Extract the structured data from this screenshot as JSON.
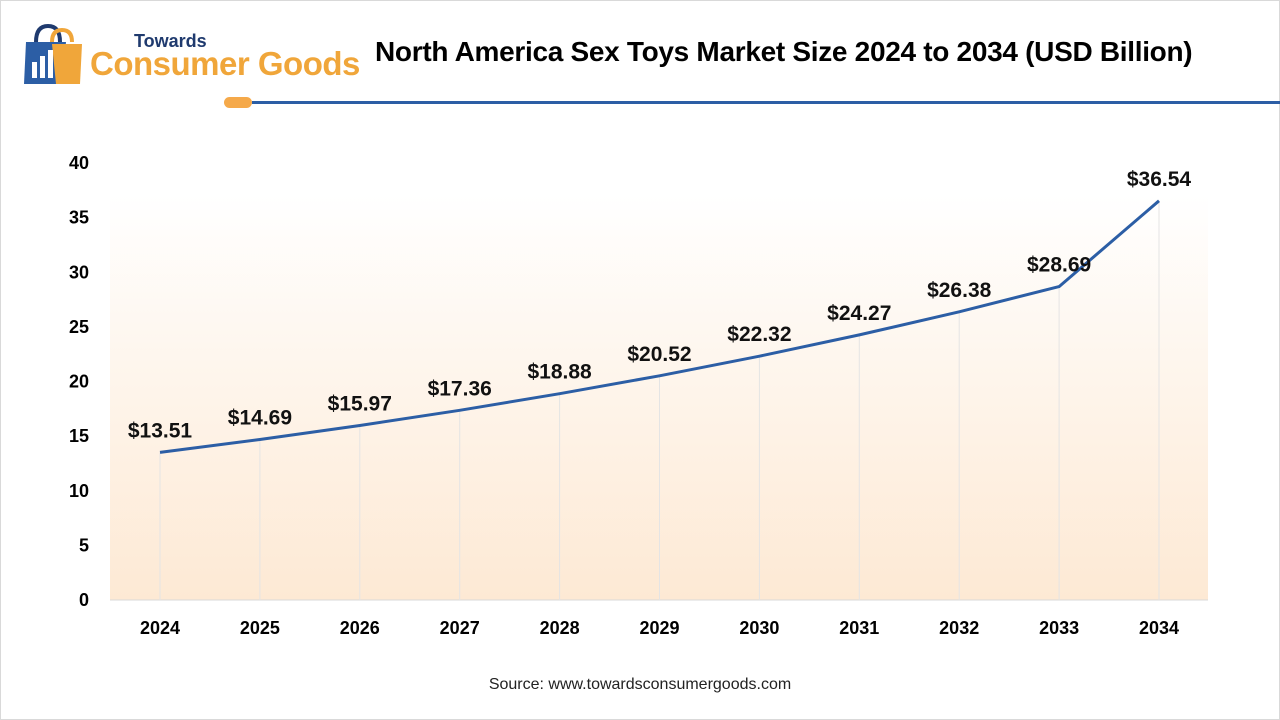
{
  "brand": {
    "top": "Towards",
    "main": "Consumer Goods"
  },
  "source": "Source: www.towardsconsumergoods.com",
  "colors": {
    "line": "#2c5ea5",
    "accent_orange": "#f5a94a",
    "brand_navy": "#1f3a6e",
    "gradient_top": "#ffffff",
    "gradient_bottom": "#fde9d4"
  },
  "chart_data": {
    "type": "line",
    "title": "North America Sex Toys Market Size 2024 to 2034 (USD Billion)",
    "categories": [
      "2024",
      "2025",
      "2026",
      "2027",
      "2028",
      "2029",
      "2030",
      "2031",
      "2032",
      "2033",
      "2034"
    ],
    "series": [
      {
        "values": [
          13.51,
          14.69,
          15.97,
          17.36,
          18.88,
          20.52,
          22.32,
          24.27,
          26.38,
          28.69,
          36.54
        ]
      }
    ],
    "data_labels": [
      "$13.51",
      "$14.69",
      "$15.97",
      "$17.36",
      "$18.88",
      "$20.52",
      "$22.32",
      "$24.27",
      "$26.38",
      "$28.69",
      "$36.54"
    ],
    "yticks": [
      0,
      5,
      10,
      15,
      20,
      25,
      30,
      35,
      40
    ],
    "ylim": [
      0,
      40
    ],
    "grid": "vertical",
    "legend": "none"
  }
}
